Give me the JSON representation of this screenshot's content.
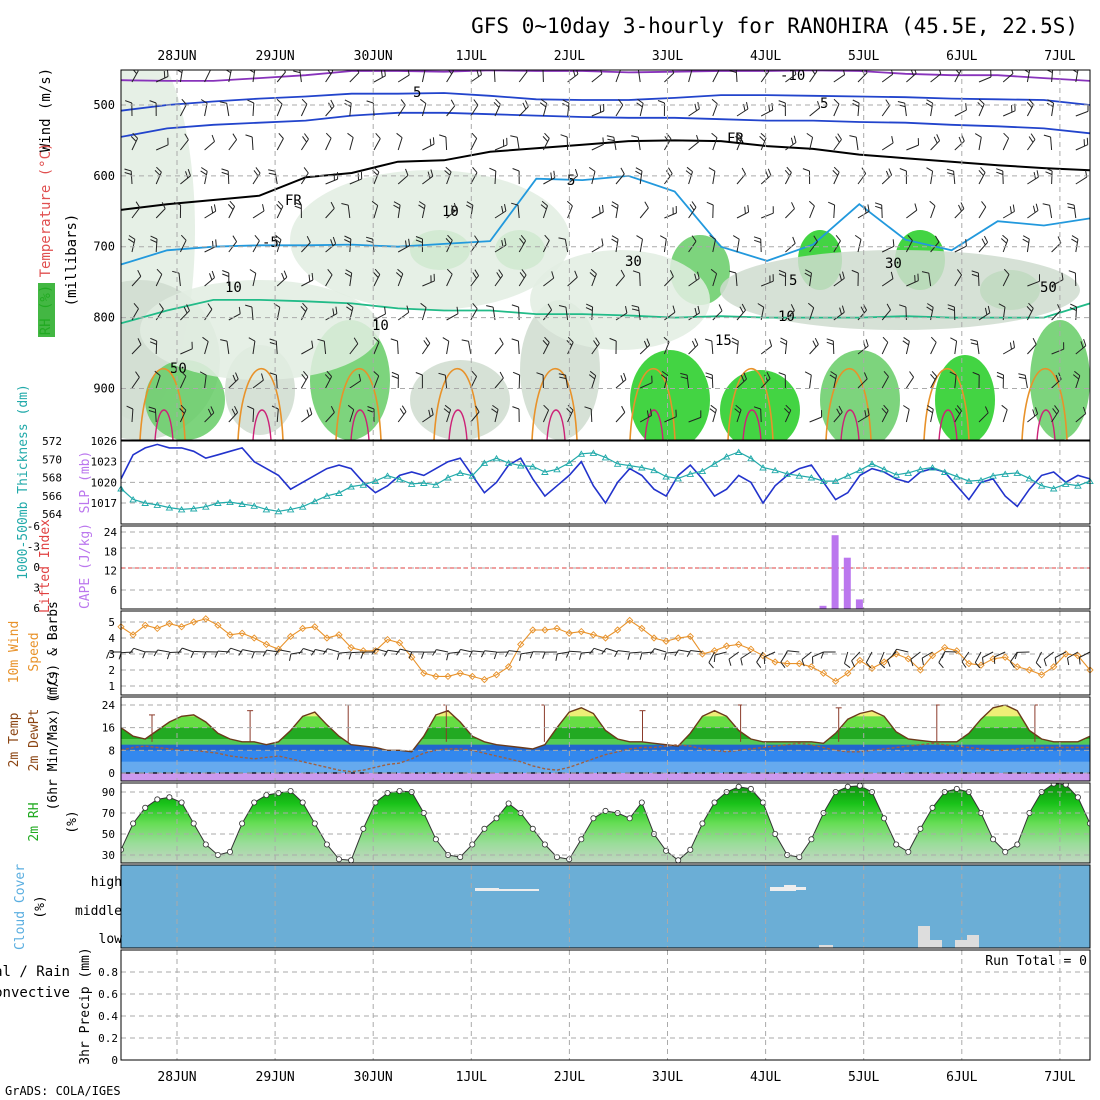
{
  "page": {
    "title": "GFS 0~10day 3-hourly for RANOHIRA (45.5E, 22.5S)",
    "footer": "GrADS: COLA/IGES"
  },
  "chart_data": [
    {
      "panel": "upper_air",
      "type": "contour",
      "x": [
        "28JUN",
        "29JUN",
        "30JUN",
        "1JUL",
        "2JUL",
        "3JUL",
        "4JUL",
        "5JUL",
        "6JUL",
        "7JUL"
      ],
      "y_ticks": [
        "500",
        "600",
        "700",
        "800",
        "900"
      ],
      "ylim": [
        975,
        450
      ],
      "ylabel_parts": [
        {
          "text": "Wind (m/s)",
          "color": "#000000"
        },
        {
          "text": "Temperature (°C)",
          "color": "#e05050"
        },
        {
          "text": "RH (%)",
          "color": "#22aa22"
        },
        {
          "text": "(millibars)",
          "color": "#000000"
        }
      ],
      "contour_labels": [
        "-10",
        "5",
        "5",
        "FR",
        "FR",
        "5",
        "-5",
        "5",
        "10",
        "10",
        "15",
        "10",
        "30",
        "30",
        "50",
        "50",
        "10"
      ],
      "contours": [
        {
          "name": "-10",
          "color": "#8833bb",
          "values": [
            465,
            466,
            466,
            462,
            458,
            452,
            452,
            453,
            451,
            452,
            452,
            454,
            453,
            452,
            452,
            451,
            452,
            456,
            458,
            458,
            462,
            466
          ]
        },
        {
          "name": "-5",
          "color": "#2244cc",
          "values": [
            508,
            500,
            495,
            491,
            488,
            484,
            484,
            483,
            487,
            492,
            493,
            493,
            490,
            486,
            486,
            487,
            488,
            489,
            491,
            492,
            493,
            500
          ]
        },
        {
          "name": "0",
          "color": "#2244cc",
          "values": [
            545,
            533,
            528,
            525,
            522,
            515,
            511,
            511,
            513,
            515,
            517,
            518,
            518,
            520,
            522,
            522,
            524,
            525,
            528,
            530,
            533,
            540
          ]
        },
        {
          "name": "FR",
          "color": "#000000",
          "values": [
            648,
            640,
            634,
            628,
            602,
            596,
            580,
            578,
            566,
            561,
            556,
            551,
            550,
            551,
            558,
            562,
            570,
            575,
            580,
            585,
            589,
            592
          ]
        },
        {
          "name": "-5b",
          "color": "#2299dd",
          "values": [
            725,
            705,
            700,
            698,
            698,
            697,
            700,
            696,
            692,
            604,
            606,
            600,
            622,
            700,
            720,
            697,
            640,
            690,
            705,
            664,
            670,
            660
          ]
        },
        {
          "name": "10",
          "color": "#22bb88",
          "values": [
            808,
            790,
            775,
            775,
            777,
            780,
            787,
            790,
            790,
            795,
            795,
            797,
            800,
            798,
            800,
            800,
            800,
            798,
            800,
            800,
            800,
            780
          ]
        }
      ]
    },
    {
      "panel": "slp_thickness",
      "type": "line",
      "x_count": 81,
      "ylabel_left": "1000-500mb Thickness (dm)",
      "ylabel_right": "SLP (mb)",
      "y_ticks_left": [
        "572",
        "570",
        "568",
        "566",
        "564"
      ],
      "y_ticks_right": [
        "1026",
        "1023",
        "1020",
        "1017"
      ],
      "series": [
        {
          "name": "SLP (mb)",
          "color": "#2233cc",
          "values": [
            1020.5,
            1024,
            1025,
            1025.5,
            1025,
            1025,
            1024.5,
            1023.5,
            1024,
            1024.5,
            1025,
            1023,
            1022,
            1021,
            1019,
            1020,
            1021,
            1022,
            1022.5,
            1022,
            1020,
            1018.5,
            1019.5,
            1021,
            1021.5,
            1021,
            1022,
            1023,
            1023.5,
            1021,
            1018.5,
            1020,
            1022.5,
            1023.5,
            1020.5,
            1018,
            1019.5,
            1021,
            1023,
            1019.5,
            1017,
            1020,
            1022,
            1021,
            1019,
            1018,
            1021,
            1022.5,
            1020.5,
            1018,
            1019,
            1021,
            1020,
            1017,
            1019.5,
            1021,
            1022,
            1022.5,
            1020,
            1017.5,
            1018.5,
            1021,
            1022,
            1021.5,
            1020.5,
            1020,
            1021.5,
            1022,
            1021.5,
            1019.5,
            1017.5,
            1020,
            1020.5,
            1018,
            1016.5,
            1019,
            1021,
            1021.5,
            1020,
            1021,
            1020.5
          ]
        },
        {
          "name": "Thickness (dm)",
          "color": "#22aaaa",
          "values": [
            566.8,
            565.6,
            565.2,
            565,
            564.7,
            564.5,
            564.6,
            564.8,
            565.2,
            565.3,
            565.1,
            564.9,
            564.5,
            564.3,
            564.5,
            564.8,
            565.4,
            566,
            566.3,
            567,
            567.2,
            567.6,
            568.2,
            567.8,
            567.3,
            567.4,
            567.2,
            568,
            568.5,
            568.2,
            569.6,
            570.1,
            569.6,
            569.3,
            569.2,
            568.6,
            568.9,
            569.6,
            570.6,
            570.7,
            570.2,
            569.5,
            569.3,
            569.1,
            568.8,
            568.1,
            567.9,
            568.4,
            568.7,
            569.5,
            570.3,
            570.8,
            570.1,
            569.1,
            568.8,
            568.4,
            568.2,
            568,
            567.6,
            567.6,
            568.2,
            568.8,
            569.5,
            568.9,
            568.3,
            568.5,
            568.9,
            569.1,
            568.6,
            568.1,
            567.6,
            567.7,
            568.2,
            568.4,
            568.5,
            567.9,
            567.1,
            566.8,
            567.3,
            567.1,
            567.6
          ]
        }
      ]
    },
    {
      "panel": "cape_li",
      "type": "bar",
      "ylabel_left": "Lifted Index",
      "ylabel_right": "CAPE (J/kg)",
      "y_ticks_left": [
        "-6",
        "-3",
        "0",
        "3",
        "6"
      ],
      "y_ticks_right": [
        "24",
        "18",
        "12",
        "6"
      ],
      "series": [
        {
          "name": "CAPE (J/kg)",
          "color": "#bb77ee",
          "bars": [
            {
              "i": 58,
              "v": 1
            },
            {
              "i": 59,
              "v": 23
            },
            {
              "i": 60,
              "v": 16
            },
            {
              "i": 61,
              "v": 3
            }
          ]
        }
      ]
    },
    {
      "panel": "wind10m",
      "type": "line",
      "ylabel": "10m Wind Speed (m/s) & Barbs",
      "y_ticks": [
        "5",
        "4",
        "3",
        "2",
        "1"
      ],
      "series": [
        {
          "name": "10m Wind Speed (m/s)",
          "color": "#e8922a",
          "values": [
            4.7,
            4.2,
            4.8,
            4.6,
            4.9,
            4.7,
            5.0,
            5.2,
            4.8,
            4.2,
            4.3,
            4.0,
            3.6,
            3.3,
            4.1,
            4.6,
            4.7,
            4.0,
            4.2,
            3.4,
            3.2,
            3.2,
            3.9,
            3.7,
            2.8,
            1.8,
            1.6,
            1.6,
            1.8,
            1.6,
            1.4,
            1.7,
            2.2,
            3.6,
            4.5,
            4.5,
            4.6,
            4.3,
            4.4,
            4.2,
            4.0,
            4.5,
            5.1,
            4.6,
            4.0,
            3.8,
            4.0,
            4.1,
            3.0,
            3.2,
            3.5,
            3.6,
            3.3,
            2.9,
            2.5,
            2.4,
            2.4,
            2.2,
            1.8,
            1.3,
            1.8,
            2.6,
            2.1,
            2.5,
            3.0,
            2.7,
            2.0,
            2.9,
            3.4,
            3.2,
            2.4,
            2.3,
            2.7,
            2.8,
            2.2,
            2.0,
            1.7,
            2.2,
            3.0,
            2.9,
            2.0
          ]
        }
      ]
    },
    {
      "panel": "temp_dewpt",
      "type": "area",
      "ylabel": "2m Temp 2m DewPt (6hr Min/Max) (°C)",
      "y_ticks": [
        "24",
        "16",
        "8",
        "0"
      ],
      "series": [
        {
          "name": "2m Temp",
          "color": "#6b3a1a",
          "values": [
            16,
            13,
            12,
            15,
            18,
            20,
            20.5,
            18,
            14,
            12,
            11,
            11,
            10,
            11,
            15,
            20,
            21.5,
            17,
            13,
            10,
            9.5,
            9,
            8,
            8,
            7.5,
            13,
            20.5,
            22,
            18,
            13,
            11,
            10,
            9.5,
            9,
            8.5,
            10,
            16,
            21.5,
            23,
            21,
            15,
            12,
            11,
            11,
            10.5,
            10,
            9.5,
            14,
            20,
            22,
            20,
            15,
            12,
            11,
            11,
            11,
            11,
            11,
            10.5,
            14,
            19,
            21,
            22,
            20,
            14.5,
            12,
            11.5,
            11,
            11,
            11,
            14,
            19,
            23,
            24,
            22,
            15,
            12,
            11,
            11,
            11,
            13
          ]
        },
        {
          "name": "2m DewPt",
          "color": "#a06040",
          "values": [
            8,
            9,
            9.5,
            9,
            8.5,
            8,
            8,
            7.5,
            7,
            6,
            5.5,
            5,
            5.5,
            6,
            5,
            4,
            3,
            2,
            1,
            0.5,
            1,
            2,
            3,
            3.5,
            5,
            7,
            8,
            8.5,
            8.5,
            8,
            7,
            6,
            5,
            4,
            2.5,
            1.5,
            1,
            2,
            3.5,
            5,
            6.5,
            7.5,
            8.5,
            9,
            9,
            9.5,
            10,
            9.5,
            8.5,
            8,
            7.5,
            8,
            8.5,
            9,
            9.5,
            10,
            10.5,
            10,
            9,
            8,
            7.5,
            7.5,
            8,
            8.5,
            9,
            9.5,
            10,
            10.5,
            10,
            9.5,
            9,
            8.5,
            8,
            8,
            8.5,
            9,
            9,
            9,
            9,
            9,
            9
          ]
        },
        {
          "name": "6hr Max",
          "color": "#6b3a1a",
          "values": [
            20.5,
            22,
            24,
            24,
            24,
            22,
            24,
            23,
            24,
            24
          ]
        }
      ]
    },
    {
      "panel": "rh2m",
      "type": "area",
      "ylabel": "2m RH (%)",
      "y_ticks": [
        "90",
        "70",
        "50",
        "30"
      ],
      "series": [
        {
          "name": "2m RH",
          "color": "#22cc22",
          "values": [
            35,
            60,
            75,
            83,
            85,
            80,
            60,
            40,
            30,
            33,
            60,
            80,
            87,
            89,
            91,
            80,
            60,
            40,
            26,
            25,
            55,
            80,
            89,
            91,
            90,
            70,
            45,
            30,
            28,
            40,
            55,
            65,
            79,
            70,
            55,
            40,
            28,
            26,
            45,
            65,
            72,
            70,
            65,
            80,
            50,
            34,
            25,
            35,
            60,
            80,
            90,
            95,
            93,
            80,
            50,
            30,
            28,
            45,
            70,
            90,
            95,
            96,
            90,
            65,
            40,
            33,
            55,
            75,
            90,
            93,
            90,
            70,
            45,
            33,
            40,
            70,
            90,
            98,
            97,
            85,
            60
          ]
        }
      ]
    },
    {
      "panel": "cloud",
      "type": "bar",
      "ylabel": "Cloud Cover (%)",
      "y_ticks": [
        "high",
        "middle",
        "low"
      ],
      "series": [
        {
          "name": "high",
          "values": []
        },
        {
          "name": "low",
          "values": []
        }
      ]
    },
    {
      "panel": "precip",
      "type": "bar",
      "ylabel": "3hr Precip (mm)",
      "legend": [
        {
          "text": "Total / Rain",
          "color": "#22aa22"
        },
        {
          "text": "Convective",
          "color": "#e04040"
        }
      ],
      "annotation": "Run Total = 0",
      "y_ticks": [
        "0.8",
        "0.6",
        "0.4",
        "0.2",
        "0"
      ],
      "ylim": [
        0,
        0.95
      ],
      "series": [
        {
          "name": "Total",
          "values": []
        }
      ]
    }
  ]
}
